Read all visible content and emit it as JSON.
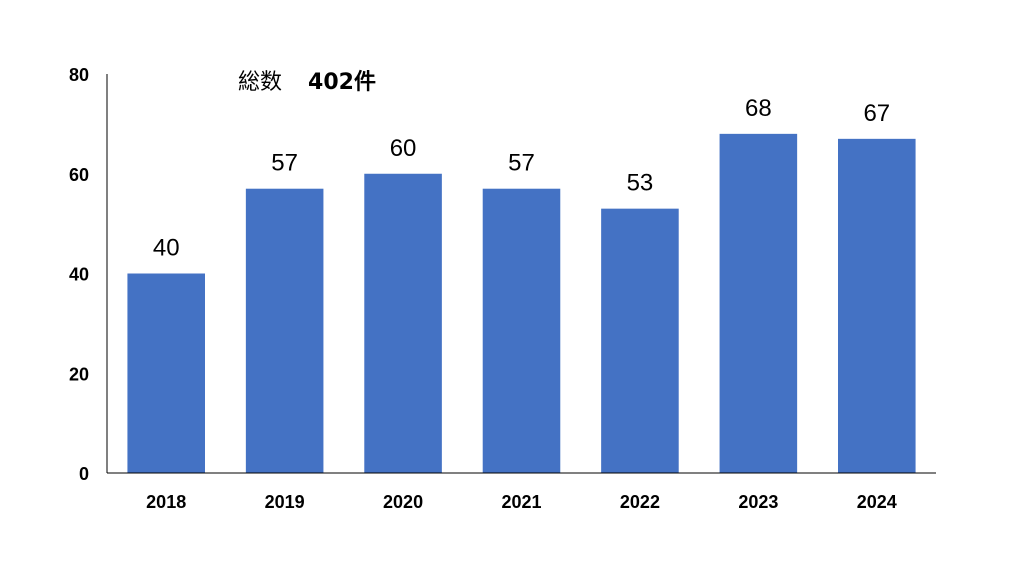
{
  "chart_data": {
    "type": "bar",
    "categories": [
      "2018",
      "2019",
      "2020",
      "2021",
      "2022",
      "2023",
      "2024"
    ],
    "values": [
      40,
      57,
      60,
      57,
      53,
      68,
      67
    ],
    "data_labels": [
      "40",
      "57",
      "60",
      "57",
      "53",
      "68",
      "67"
    ],
    "ylim": [
      0,
      80
    ],
    "yticks": [
      0,
      20,
      40,
      60,
      80
    ],
    "ytick_labels": [
      "0",
      "20",
      "40",
      "60",
      "80"
    ],
    "grid": false,
    "bar_color": "#4472C4",
    "annotation": {
      "label": "総数",
      "value": "402件"
    }
  }
}
